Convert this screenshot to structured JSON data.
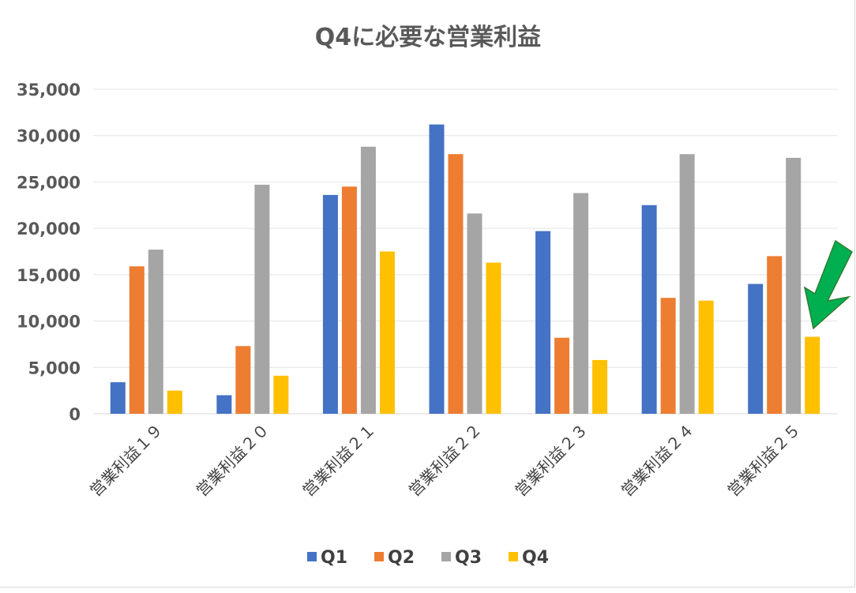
{
  "chart_data": {
    "type": "bar",
    "title": "Q4に必要な営業利益",
    "xlabel": "",
    "ylabel": "",
    "categories": [
      "営業利益１９",
      "営業利益２０",
      "営業利益２１",
      "営業利益２２",
      "営業利益２３",
      "営業利益２４",
      "営業利益２５"
    ],
    "series": [
      {
        "name": "Q1",
        "color": "#4472c4",
        "values": [
          3400,
          2000,
          23600,
          31200,
          19700,
          22500,
          14000
        ]
      },
      {
        "name": "Q2",
        "color": "#ed7d31",
        "values": [
          15900,
          7300,
          24500,
          28000,
          8200,
          12500,
          17000
        ]
      },
      {
        "name": "Q3",
        "color": "#a5a5a5",
        "values": [
          17700,
          24700,
          28800,
          21600,
          23800,
          28000,
          27600
        ]
      },
      {
        "name": "Q4",
        "color": "#ffc000",
        "values": [
          2500,
          4100,
          17500,
          16300,
          5800,
          12200,
          8300
        ]
      }
    ],
    "ylim": [
      0,
      35000
    ],
    "yticks": [
      "0",
      "5,000",
      "10,000",
      "15,000",
      "20,000",
      "25,000",
      "30,000",
      "35,000"
    ],
    "grid": true,
    "legend_position": "bottom",
    "annotation": {
      "type": "arrow",
      "color": "#00b050",
      "points_to": "営業利益２５ Q4"
    }
  }
}
